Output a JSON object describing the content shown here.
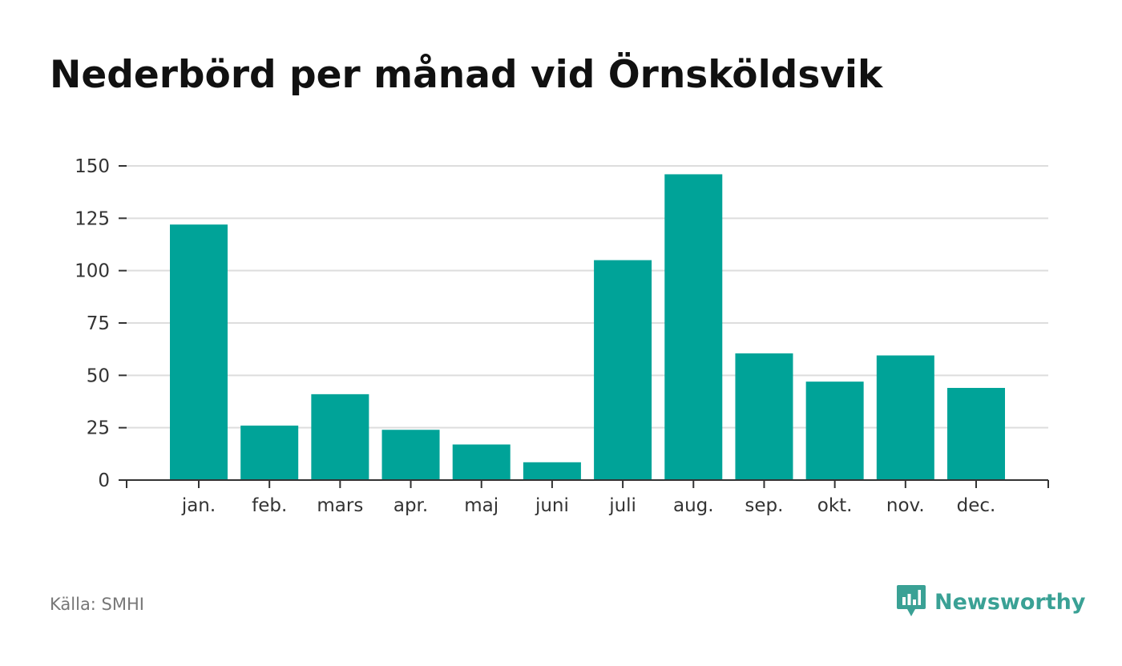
{
  "chart_data": {
    "type": "bar",
    "title": "Nederbörd per månad vid Örnsköldsvik",
    "categories": [
      "jan.",
      "feb.",
      "mars",
      "apr.",
      "maj",
      "juni",
      "juli",
      "aug.",
      "sep.",
      "okt.",
      "nov.",
      "dec."
    ],
    "values": [
      122,
      26,
      41,
      24,
      17,
      8.5,
      105,
      146,
      60.5,
      47,
      59.5,
      44
    ],
    "ylim": [
      0,
      150
    ],
    "yticks": [
      "0",
      "25",
      "50",
      "75",
      "100",
      "125",
      "150"
    ],
    "xlabel": "",
    "ylabel": "",
    "grid": true,
    "bar_color": "#00a398"
  },
  "source": "Källa: SMHI",
  "brand": {
    "name": "Newsworthy",
    "icon": "newsworthy-logo-icon",
    "color": "#3aa195"
  }
}
